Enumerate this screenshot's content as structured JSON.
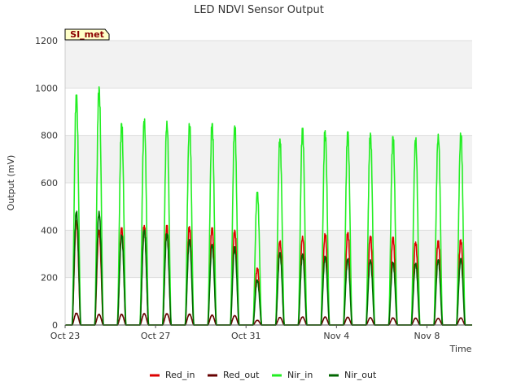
{
  "chart_data": {
    "type": "line",
    "title": "LED NDVI Sensor Output",
    "xlabel": "Time",
    "ylabel": "Output (mV)",
    "badge": "SI_met",
    "ylim": [
      0,
      1200
    ],
    "yticks": [
      0,
      200,
      400,
      600,
      800,
      1000,
      1200
    ],
    "xlim": [
      "2023-10-23",
      "2023-11-10"
    ],
    "xticks": [
      {
        "date": "2023-10-23",
        "label": "Oct 23"
      },
      {
        "date": "2023-10-27",
        "label": "Oct 27"
      },
      {
        "date": "2023-10-31",
        "label": "Oct 31"
      },
      {
        "date": "2023-11-04",
        "label": "Nov 4"
      },
      {
        "date": "2023-11-08",
        "label": "Nov 8"
      }
    ],
    "grid": true,
    "legend_position": "bottom",
    "days": [
      "2023-10-23",
      "2023-10-24",
      "2023-10-25",
      "2023-10-26",
      "2023-10-27",
      "2023-10-28",
      "2023-10-29",
      "2023-10-30",
      "2023-10-31",
      "2023-11-01",
      "2023-11-02",
      "2023-11-03",
      "2023-11-04",
      "2023-11-05",
      "2023-11-06",
      "2023-11-07",
      "2023-11-08",
      "2023-11-09"
    ],
    "series": [
      {
        "name": "Red_in",
        "color": "#dd0000",
        "daily_peaks": [
          440,
          400,
          410,
          420,
          420,
          415,
          410,
          400,
          240,
          355,
          375,
          385,
          390,
          375,
          370,
          350,
          355,
          360
        ]
      },
      {
        "name": "Red_out",
        "color": "#660000",
        "daily_peaks": [
          50,
          45,
          45,
          48,
          48,
          46,
          42,
          40,
          20,
          32,
          34,
          34,
          33,
          31,
          30,
          29,
          28,
          30
        ]
      },
      {
        "name": "Nir_in",
        "color": "#22ee22",
        "daily_peaks": [
          970,
          1005,
          850,
          870,
          860,
          850,
          850,
          840,
          560,
          785,
          830,
          820,
          815,
          810,
          795,
          790,
          805,
          810
        ]
      },
      {
        "name": "Nir_out",
        "color": "#006600",
        "daily_peaks": [
          480,
          480,
          380,
          400,
          385,
          360,
          340,
          330,
          190,
          305,
          300,
          290,
          280,
          275,
          265,
          260,
          275,
          280
        ]
      }
    ]
  }
}
